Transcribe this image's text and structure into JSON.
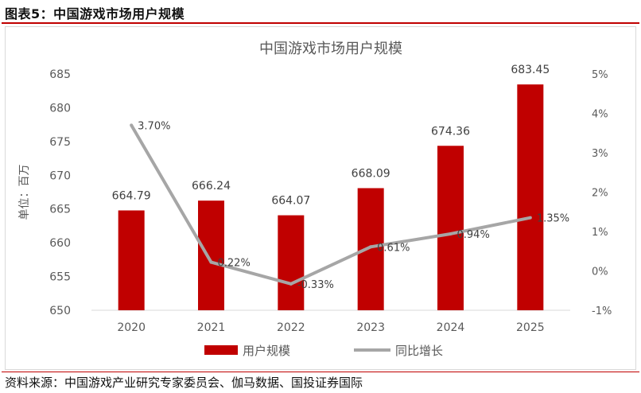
{
  "figure_label": "图表5：中国游戏市场用户规模",
  "source": "资料来源：中国游戏产业研究专家委员会、伽马数据、国投证券国际",
  "colors": {
    "bar": "#c00000",
    "line": "#a6a6a6",
    "rule": "#c00000",
    "axis_text": "#595959"
  },
  "chart_data": {
    "type": "bar+line",
    "title": "中国游戏市场用户规模",
    "categories": [
      "2020",
      "2021",
      "2022",
      "2023",
      "2024",
      "2025"
    ],
    "series": [
      {
        "name": "用户规模",
        "type": "bar",
        "axis": "left",
        "values": [
          664.79,
          666.24,
          664.07,
          668.09,
          674.36,
          683.45
        ],
        "labels": [
          "664.79",
          "666.24",
          "664.07",
          "668.09",
          "674.36",
          "683.45"
        ]
      },
      {
        "name": "同比增长",
        "type": "line",
        "axis": "right",
        "values": [
          3.7,
          0.22,
          -0.33,
          0.61,
          0.94,
          1.35
        ],
        "labels": [
          "3.70%",
          "0.22%",
          "-0.33%",
          "0.61%",
          "0.94%",
          "1.35%"
        ]
      }
    ],
    "ylabel": "单位：百万",
    "ylim": [
      650,
      685
    ],
    "yticks": [
      "650",
      "655",
      "660",
      "665",
      "670",
      "675",
      "680",
      "685"
    ],
    "y2lim": [
      -1,
      5
    ],
    "y2ticks": [
      "-1%",
      "0%",
      "1%",
      "2%",
      "3%",
      "4%",
      "5%"
    ],
    "grid": false,
    "legend_position": "bottom"
  }
}
